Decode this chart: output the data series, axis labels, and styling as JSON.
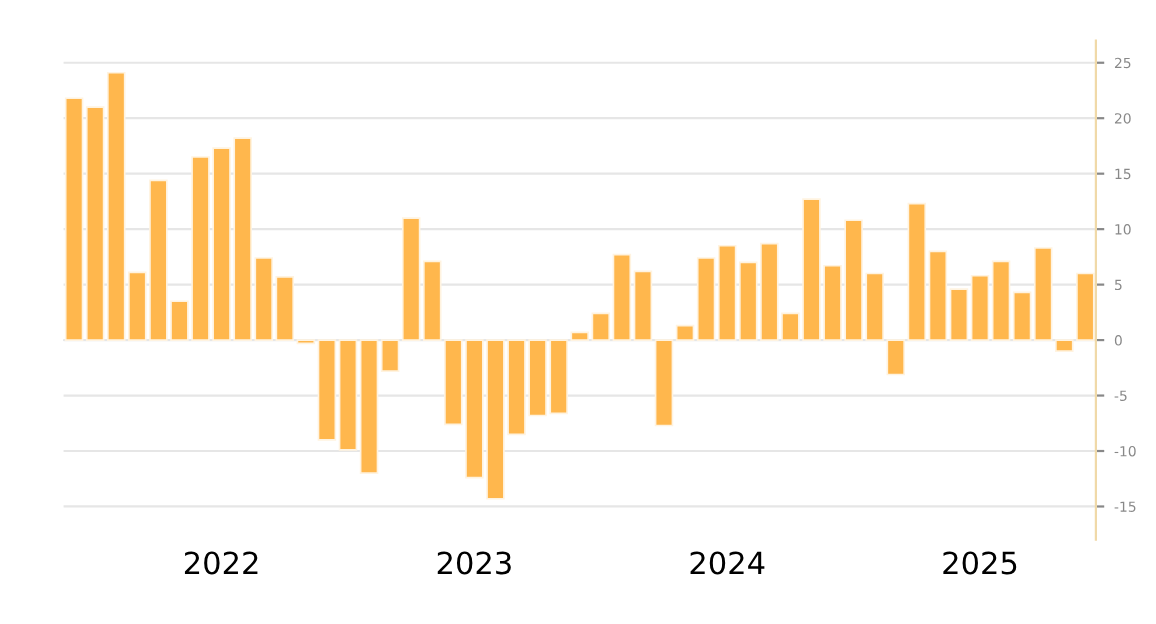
{
  "chart_data": {
    "type": "bar",
    "categories": [
      null,
      null,
      null,
      null,
      null,
      null,
      null,
      "2022",
      null,
      null,
      null,
      null,
      null,
      null,
      null,
      null,
      null,
      null,
      null,
      "2023",
      null,
      null,
      null,
      null,
      null,
      null,
      null,
      null,
      null,
      null,
      null,
      "2024",
      null,
      null,
      null,
      null,
      null,
      null,
      null,
      null,
      null,
      null,
      null,
      "2025",
      null,
      null,
      null,
      null,
      null
    ],
    "values": [
      21.8,
      21.0,
      24.1,
      6.1,
      14.4,
      3.5,
      16.5,
      17.3,
      18.2,
      7.4,
      5.7,
      -0.3,
      -9.0,
      -9.9,
      -12.0,
      -2.8,
      11.0,
      7.1,
      -7.6,
      -12.4,
      -14.3,
      -8.5,
      -6.8,
      -6.6,
      0.7,
      2.4,
      7.7,
      6.2,
      -7.7,
      1.3,
      7.4,
      8.5,
      7.0,
      8.7,
      2.4,
      12.7,
      6.7,
      10.8,
      6.0,
      -3.1,
      12.3,
      8.0,
      4.6,
      5.8,
      7.1,
      4.3,
      8.3,
      -1.0,
      6.0
    ],
    "color": "#ffb74d",
    "ylim": [
      -18,
      27
    ],
    "yticks": [
      -15,
      -10,
      -5,
      0,
      5,
      10,
      15,
      20,
      25
    ],
    "grid": "y"
  }
}
